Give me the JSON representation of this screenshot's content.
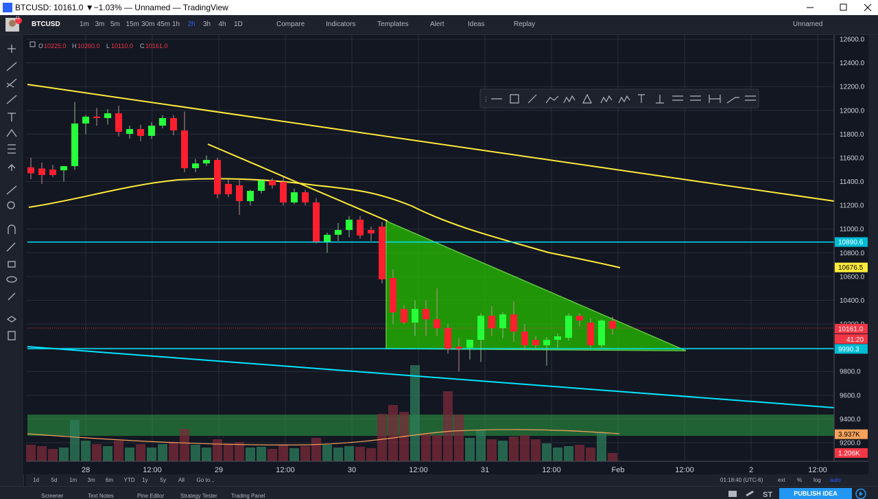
{
  "window_title": "BTCUSD: 10161.0 ▼−1.03% — Unnamed — TradingView",
  "toolbar": {
    "symbol": "BTCUSD",
    "intervals": [
      "1m",
      "3m",
      "5m",
      "15m",
      "30m",
      "45m",
      "1h",
      "2h",
      "3h",
      "4h",
      "1D"
    ],
    "compare": "Compare",
    "indicators": "Indicators",
    "templates": "Templates",
    "alert": "Alert",
    "ideas": "Ideas",
    "replay": "Replay",
    "layout": "Unnamed",
    "badge": "11"
  },
  "legend": {
    "o_label": "O",
    "o": "10225.0",
    "h_label": "H",
    "h": "10260.0",
    "l_label": "L",
    "l": "10110.0",
    "c_label": "C",
    "c": "10161.0"
  },
  "chart": {
    "ylim": [
      9200,
      12600
    ],
    "yticks": [
      {
        "value": 12600,
        "label": "12600.0"
      },
      {
        "value": 12400,
        "label": "12400.0"
      },
      {
        "value": 12200,
        "label": "12200.0"
      },
      {
        "value": 12000,
        "label": "12000.0"
      },
      {
        "value": 11800,
        "label": "11800.0"
      },
      {
        "value": 11600,
        "label": "11600.0"
      },
      {
        "value": 11400,
        "label": "11400.0"
      },
      {
        "value": 11200,
        "label": "11200.0"
      },
      {
        "value": 11000,
        "label": "11000.0"
      },
      {
        "value": 10800,
        "label": "10800.0"
      },
      {
        "value": 10600,
        "label": "10600.0"
      },
      {
        "value": 10400,
        "label": "10400.0"
      },
      {
        "value": 10200,
        "label": "10200.0"
      },
      {
        "value": 10000,
        "label": "10000.0"
      },
      {
        "value": 9800,
        "label": "9800.0"
      },
      {
        "value": 9600,
        "label": "9600.0"
      },
      {
        "value": 9400,
        "label": "9400.0"
      },
      {
        "value": 9200,
        "label": "9200.0"
      }
    ],
    "xticks": [
      "28",
      "12:00",
      "29",
      "12:00",
      "30",
      "12:00",
      "31",
      "12:00",
      "Feb",
      "12:00",
      "2",
      "12:00"
    ],
    "candles": [
      [
        11520,
        11600,
        11420,
        11470
      ],
      [
        11510,
        11560,
        11380,
        11455
      ],
      [
        11501,
        11540,
        11440,
        11455
      ],
      [
        11495,
        11530,
        11400,
        11530
      ],
      [
        11530,
        12070,
        11500,
        11889
      ],
      [
        11889,
        11960,
        11800,
        11947
      ],
      [
        11947,
        12020,
        11870,
        11935
      ],
      [
        11935,
        12010,
        11880,
        11975
      ],
      [
        11975,
        12040,
        11780,
        11819
      ],
      [
        11802,
        11870,
        11760,
        11842
      ],
      [
        11842,
        11880,
        11740,
        11785
      ],
      [
        11785,
        11900,
        11760,
        11871
      ],
      [
        11871,
        11960,
        11850,
        11935
      ],
      [
        11935,
        11960,
        11790,
        11831
      ],
      [
        11831,
        11990,
        11480,
        11513
      ],
      [
        11513,
        11590,
        11480,
        11553
      ],
      [
        11553,
        11620,
        11530,
        11582
      ],
      [
        11582,
        11600,
        11260,
        11293
      ],
      [
        11380,
        11420,
        11270,
        11293
      ],
      [
        11368,
        11420,
        11120,
        11235
      ],
      [
        11235,
        11330,
        11200,
        11322
      ],
      [
        11322,
        11420,
        11300,
        11409
      ],
      [
        11409,
        11430,
        11340,
        11368
      ],
      [
        11397,
        11440,
        11200,
        11224
      ],
      [
        11224,
        11340,
        11210,
        11310
      ],
      [
        11310,
        11330,
        11200,
        11224
      ],
      [
        11224,
        11260,
        10880,
        10894
      ],
      [
        10894,
        10970,
        10800,
        10952
      ],
      [
        10952,
        11050,
        10900,
        10992
      ],
      [
        10992,
        11110,
        10930,
        11079
      ],
      [
        11079,
        11110,
        10920,
        10946
      ],
      [
        10992,
        11020,
        10900,
        10963
      ],
      [
        11021,
        11060,
        10540,
        10576
      ],
      [
        10588,
        10660,
        10200,
        10298
      ],
      [
        10327,
        10360,
        10200,
        10212
      ],
      [
        10212,
        10400,
        10100,
        10327
      ],
      [
        10327,
        10400,
        10100,
        10240
      ],
      [
        10240,
        10500,
        10100,
        10165
      ],
      [
        10165,
        10200,
        9950,
        9992
      ],
      [
        10009,
        10080,
        9800,
        9992
      ],
      [
        10000,
        10060,
        9900,
        10067
      ],
      [
        10067,
        10290,
        9880,
        10269
      ],
      [
        10269,
        10350,
        10100,
        10165
      ],
      [
        10165,
        10300,
        10080,
        10281
      ],
      [
        10281,
        10390,
        10050,
        10136
      ],
      [
        10136,
        10200,
        9980,
        10021
      ],
      [
        10067,
        10100,
        9990,
        10021
      ],
      [
        10021,
        10090,
        9850,
        10067
      ],
      [
        10067,
        10120,
        10000,
        10096
      ],
      [
        10084,
        10290,
        10060,
        10269
      ],
      [
        10269,
        10290,
        10180,
        10229
      ],
      [
        10212,
        10250,
        10000,
        10021
      ],
      [
        10021,
        10240,
        10000,
        10229
      ],
      [
        10225,
        10260,
        10110,
        10161
      ]
    ],
    "volume": [
      2.4,
      2.2,
      1.8,
      2.0,
      6.0,
      3.0,
      2.5,
      2.2,
      3.0,
      2.0,
      2.5,
      2.0,
      2.5,
      2.8,
      4.7,
      2.4,
      2.0,
      3.2,
      2.6,
      2.8,
      2.0,
      2.1,
      1.8,
      2.4,
      1.9,
      2.2,
      3.4,
      2.4,
      2.0,
      2.2,
      2.1,
      1.9,
      6.9,
      8.2,
      7.2,
      14.0,
      4.0,
      3.8,
      10.2,
      6.8,
      3.4,
      4.6,
      3.2,
      3.0,
      3.6,
      3.8,
      3.2,
      2.6,
      2.0,
      2.2,
      2.4,
      2.0,
      4.2,
      1.206
    ],
    "price_badges": [
      {
        "value": 10890.6,
        "color": "#00bcd4"
      },
      {
        "value": 10676.5,
        "color": "#ffeb3b"
      },
      {
        "value": {
          "value": 10161,
          "label": "10161.0"
        },
        "color": "#f23645"
      },
      {
        "value": 9990.3,
        "color": "#00bcd4"
      }
    ],
    "countdown": "41:20",
    "volume_badges": [
      {
        "value": 3.937,
        "label": "3.937K",
        "color": "#f7a35c"
      },
      {
        "value": 1.206,
        "label": "1.206K",
        "color": "#f23645"
      }
    ]
  },
  "bottom": {
    "ranges": [
      "1d",
      "5d",
      "1m",
      "3m",
      "6m",
      "YTD",
      "1y",
      "5y",
      "All",
      "Go to..."
    ],
    "clock": "01:18:40 (UTC-6)",
    "ext": "ext",
    "pct": "%",
    "log": "log",
    "auto": "auto"
  },
  "tabs": [
    "Screener",
    "Text Notes",
    "Pine Editor",
    "Strategy Tester",
    "Trading Panel"
  ],
  "publish": "PUBLISH IDEA"
}
